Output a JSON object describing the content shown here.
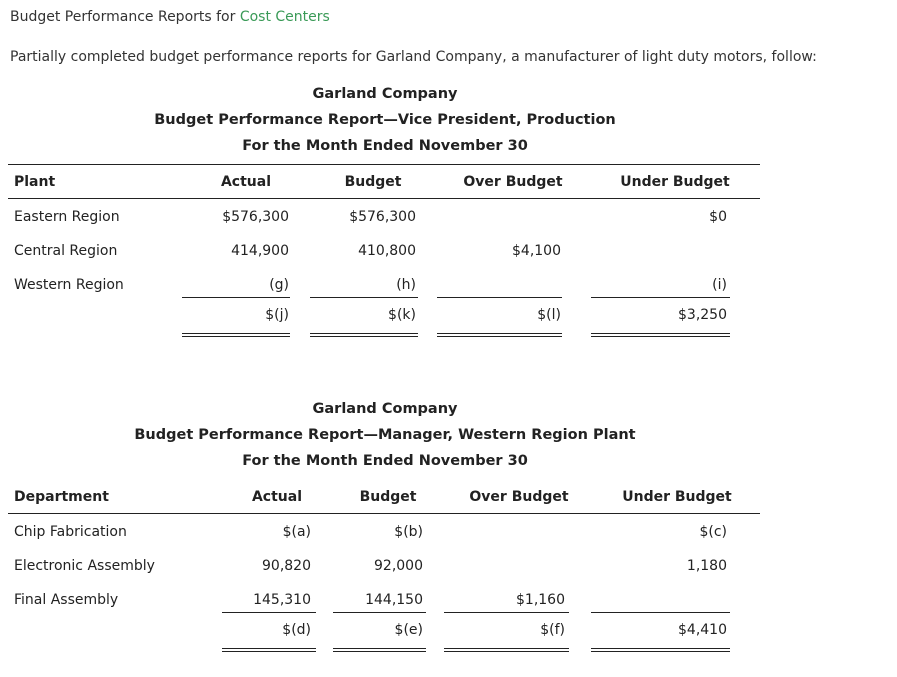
{
  "heading": {
    "prefix": "Budget Performance Reports for ",
    "link": "Cost Centers"
  },
  "intro": "Partially completed budget performance reports for Garland Company, a manufacturer of light duty motors, follow:",
  "report1": {
    "company": "Garland Company",
    "title": "Budget Performance Report—Vice President, Production",
    "period": "For the Month Ended November 30",
    "headers": [
      "Plant",
      "Actual",
      "Budget",
      "Over Budget",
      "Under Budget"
    ],
    "rows": [
      [
        "Eastern Region",
        "$576,300",
        "$576,300",
        "",
        "$0"
      ],
      [
        "Central Region",
        "414,900",
        "410,800",
        "$4,100",
        ""
      ],
      [
        "Western Region",
        "(g)",
        "(h)",
        "",
        "(i)"
      ]
    ],
    "total": [
      "",
      "$(j)",
      "$(k)",
      "$(l)",
      "$3,250"
    ]
  },
  "report2": {
    "company": "Garland Company",
    "title": "Budget Performance Report—Manager, Western Region Plant",
    "period": "For the Month Ended November 30",
    "headers": [
      "Department",
      "Actual",
      "Budget",
      "Over Budget",
      "Under Budget"
    ],
    "rows": [
      [
        "Chip Fabrication",
        "$(a)",
        "$(b)",
        "",
        "$(c)"
      ],
      [
        "Electronic Assembly",
        "90,820",
        "92,000",
        "",
        "1,180"
      ],
      [
        "Final Assembly",
        "145,310",
        "144,150",
        "$1,160",
        ""
      ]
    ],
    "total": [
      "",
      "$(d)",
      "$(e)",
      "$(f)",
      "$4,410"
    ]
  },
  "colors": {
    "link": "#3a9a57"
  }
}
